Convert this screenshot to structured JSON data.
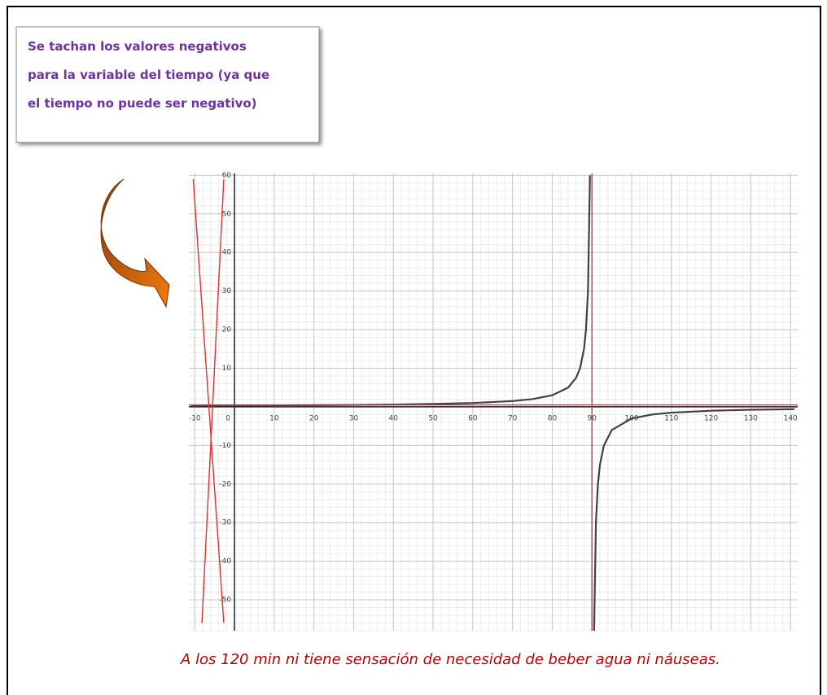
{
  "note": {
    "lines": [
      "Se tachan los valores negativos",
      "para la variable del tiempo (ya que",
      "el tiempo no puede ser negativo)"
    ]
  },
  "footer": "A los 120 min ni tiene sensación de necesidad de beber agua ni náuseas.",
  "chart_data": {
    "type": "line",
    "grid": true,
    "xlim": [
      -11.5,
      141.8
    ],
    "ylim": [
      -58,
      60.5
    ],
    "xticks": [
      -10,
      0,
      10,
      20,
      30,
      40,
      50,
      60,
      70,
      80,
      90,
      100,
      110,
      120,
      130,
      140
    ],
    "yticks": [
      -50,
      -40,
      -30,
      -20,
      -10,
      10,
      20,
      30,
      40,
      50,
      60
    ],
    "series": [
      {
        "color": "#404040",
        "x": [
          -11,
          0,
          10,
          20,
          30,
          40,
          50,
          60,
          70,
          75,
          80,
          84,
          86,
          87,
          88,
          88.5,
          89,
          89.5,
          90,
          90.5,
          91,
          91.5,
          92,
          93,
          95,
          100,
          105,
          110,
          120,
          130,
          141
        ],
        "values": [
          0.3,
          0.33,
          0.38,
          0.43,
          0.5,
          0.6,
          0.75,
          1,
          1.5,
          2,
          3,
          5,
          7.5,
          10,
          15,
          20,
          30,
          60,
          null,
          -60,
          -30,
          -20,
          -15,
          -10,
          -6,
          -3,
          -2,
          -1.5,
          -1,
          -0.75,
          -0.59
        ]
      },
      {
        "color": "#e03030",
        "x": [
          -11.5,
          141.8
        ],
        "values": [
          0.5,
          0.5
        ]
      },
      {
        "color": "#e03030",
        "x": [
          90,
          90
        ],
        "values": [
          60.5,
          -58
        ]
      },
      {
        "color": "#e03030",
        "x": [
          -10.4,
          -2.7
        ],
        "values": [
          59,
          -56
        ]
      },
      {
        "color": "#e03030",
        "x": [
          -2.7,
          -8.2
        ],
        "values": [
          59,
          -56
        ]
      }
    ]
  }
}
